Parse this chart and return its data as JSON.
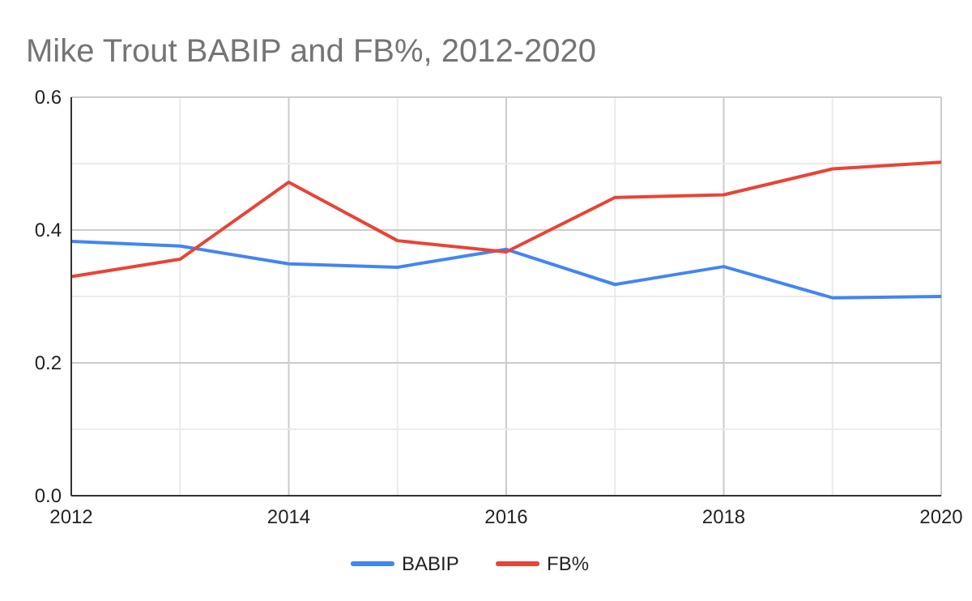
{
  "chart_data": {
    "type": "line",
    "title": "Mike Trout BABIP and FB%, 2012-2020",
    "x": [
      2012,
      2013,
      2014,
      2015,
      2016,
      2017,
      2018,
      2019,
      2020
    ],
    "series": [
      {
        "name": "BABIP",
        "color": "#4285f4",
        "values": [
          0.383,
          0.376,
          0.349,
          0.344,
          0.371,
          0.318,
          0.345,
          0.298,
          0.3
        ]
      },
      {
        "name": "FB%",
        "color": "#ea4335",
        "values": [
          0.33,
          0.356,
          0.472,
          0.384,
          0.367,
          0.449,
          0.453,
          0.492,
          0.502
        ]
      }
    ],
    "xlim": [
      2012,
      2020
    ],
    "xticks": [
      2012,
      {
        "value": 2013,
        "label": null
      },
      2014,
      {
        "value": 2015,
        "label": null
      },
      2016,
      {
        "value": 2017,
        "label": null
      },
      2018,
      {
        "value": 2019,
        "label": null
      },
      2020
    ],
    "ylim": [
      0,
      0.6
    ],
    "yticks": [
      {
        "value": 0,
        "label": "0.0"
      },
      {
        "value": 0.1,
        "label": null
      },
      0.2,
      {
        "value": 0.3,
        "label": null
      },
      0.4,
      {
        "value": 0.5,
        "label": null
      },
      0.6
    ],
    "grid": true,
    "legend": "bottom",
    "marker": "none",
    "line_style": "solid"
  }
}
